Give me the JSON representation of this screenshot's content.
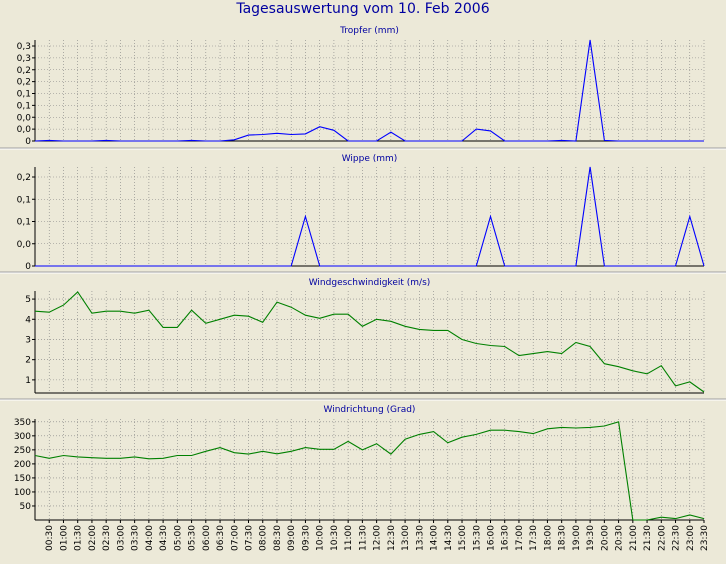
{
  "title": "Tagesauswertung vom 10. Feb 2006",
  "time_labels": [
    "00:30",
    "01:00",
    "01:30",
    "02:00",
    "02:30",
    "03:00",
    "03:30",
    "04:00",
    "04:30",
    "05:00",
    "05:30",
    "06:00",
    "06:30",
    "07:00",
    "07:30",
    "08:00",
    "08:30",
    "09:00",
    "09:30",
    "10:00",
    "10:30",
    "11:00",
    "11:30",
    "12:00",
    "12:30",
    "13:00",
    "13:30",
    "14:00",
    "14:30",
    "15:00",
    "15:30",
    "16:00",
    "16:30",
    "17:00",
    "17:30",
    "18:00",
    "18:30",
    "19:00",
    "19:30",
    "20:00",
    "20:30",
    "21:00",
    "21:30",
    "22:00",
    "22:30",
    "23:00",
    "23:30"
  ],
  "colors": {
    "background": "#ece9d8",
    "title": "#0000a0",
    "grid": "#808080",
    "blue_series": "#0000ff",
    "green_series": "#008000"
  },
  "chart_data": [
    {
      "type": "line",
      "title": "Tropfer (mm)",
      "ytick_labels": [
        "0",
        "0,0",
        "0,0",
        "0,1",
        "0,1",
        "0,2",
        "0,2",
        "0,3",
        "0,3"
      ],
      "ylim": [
        0,
        0.34
      ],
      "grid": true,
      "color": "#0000ff",
      "x": [
        0.0,
        0.5,
        1.0,
        1.5,
        2.0,
        2.5,
        3.0,
        3.5,
        4.0,
        4.5,
        5.0,
        5.5,
        6.0,
        6.5,
        7.0,
        7.5,
        8.0,
        8.5,
        9.0,
        9.5,
        10.0,
        10.5,
        11.0,
        11.5,
        12.0,
        12.5,
        13.0,
        13.5,
        14.0,
        14.5,
        15.0,
        15.5,
        16.0,
        16.5,
        17.0,
        17.5,
        18.0,
        18.5,
        19.0,
        19.5,
        20.0,
        20.5,
        21.0,
        21.5,
        22.0,
        22.5,
        23.0,
        23.5
      ],
      "values": [
        0,
        0.002,
        0,
        0,
        0,
        0.002,
        0,
        0,
        0,
        0,
        0,
        0.002,
        0,
        0,
        0.004,
        0.02,
        0.022,
        0.026,
        0.022,
        0.024,
        0.048,
        0.036,
        0,
        0,
        0,
        0.03,
        0,
        0,
        0,
        0,
        0,
        0.04,
        0.034,
        0,
        0,
        0,
        0,
        0.002,
        0,
        0.34,
        0.002,
        0,
        0,
        0,
        0,
        0,
        0,
        0
      ]
    },
    {
      "type": "line",
      "title": "Wippe (mm)",
      "ytick_labels": [
        "0",
        "0,0",
        "0,1",
        "0,1",
        "0,2"
      ],
      "ylim": [
        0,
        0.27
      ],
      "grid": true,
      "color": "#0000ff",
      "x": [
        0.0,
        0.5,
        1.0,
        1.5,
        2.0,
        2.5,
        3.0,
        3.5,
        4.0,
        4.5,
        5.0,
        5.5,
        6.0,
        6.5,
        7.0,
        7.5,
        8.0,
        8.5,
        9.0,
        9.5,
        10.0,
        10.5,
        11.0,
        11.5,
        12.0,
        12.5,
        13.0,
        13.5,
        14.0,
        14.5,
        15.0,
        15.5,
        16.0,
        16.5,
        17.0,
        17.5,
        18.0,
        18.5,
        19.0,
        19.5,
        20.0,
        20.5,
        21.0,
        21.5,
        22.0,
        22.5,
        23.0,
        23.5
      ],
      "values": [
        0,
        0,
        0,
        0,
        0,
        0,
        0,
        0,
        0,
        0,
        0,
        0,
        0,
        0,
        0,
        0,
        0,
        0,
        0,
        0.135,
        0,
        0,
        0,
        0,
        0,
        0,
        0,
        0,
        0,
        0,
        0,
        0,
        0.135,
        0,
        0,
        0,
        0,
        0,
        0,
        0.27,
        0,
        0,
        0,
        0,
        0,
        0,
        0.135,
        0
      ]
    },
    {
      "type": "line",
      "title": "Windgeschwindigkeit (m/s)",
      "ytick_labels": [
        "1",
        "2",
        "3",
        "4",
        "5"
      ],
      "ylim": [
        0.35,
        5.4
      ],
      "grid": true,
      "color": "#008000",
      "x": [
        0.0,
        0.5,
        1.0,
        1.5,
        2.0,
        2.5,
        3.0,
        3.5,
        4.0,
        4.5,
        5.0,
        5.5,
        6.0,
        6.5,
        7.0,
        7.5,
        8.0,
        8.5,
        9.0,
        9.5,
        10.0,
        10.5,
        11.0,
        11.5,
        12.0,
        12.5,
        13.0,
        13.5,
        14.0,
        14.5,
        15.0,
        15.5,
        16.0,
        16.5,
        17.0,
        17.5,
        18.0,
        18.5,
        19.0,
        19.5,
        20.0,
        20.5,
        21.0,
        21.5,
        22.0,
        22.5,
        23.0,
        23.5
      ],
      "values": [
        4.4,
        4.35,
        4.7,
        5.35,
        4.3,
        4.4,
        4.4,
        4.3,
        4.45,
        3.6,
        3.6,
        4.45,
        3.8,
        4.0,
        4.2,
        4.15,
        3.85,
        4.85,
        4.6,
        4.2,
        4.05,
        4.25,
        4.25,
        3.65,
        4.0,
        3.9,
        3.65,
        3.5,
        3.45,
        3.45,
        3.0,
        2.8,
        2.7,
        2.65,
        2.2,
        2.3,
        2.4,
        2.3,
        2.85,
        2.65,
        1.8,
        1.65,
        1.45,
        1.3,
        1.7,
        0.7,
        0.9,
        0.4
      ]
    },
    {
      "type": "line",
      "title": "Windrichtung (Grad)",
      "ytick_labels": [
        "50",
        "100",
        "150",
        "200",
        "250",
        "300",
        "350"
      ],
      "ylim": [
        0,
        360
      ],
      "grid": true,
      "color": "#008000",
      "x": [
        0.0,
        0.5,
        1.0,
        1.5,
        2.0,
        2.5,
        3.0,
        3.5,
        4.0,
        4.5,
        5.0,
        5.5,
        6.0,
        6.5,
        7.0,
        7.5,
        8.0,
        8.5,
        9.0,
        9.5,
        10.0,
        10.5,
        11.0,
        11.5,
        12.0,
        12.5,
        13.0,
        13.5,
        14.0,
        14.5,
        15.0,
        15.5,
        16.0,
        16.5,
        17.0,
        17.5,
        18.0,
        18.5,
        19.0,
        19.5,
        20.0,
        20.5,
        21.0,
        21.5,
        22.0,
        22.5,
        23.0,
        23.5
      ],
      "values": [
        230,
        220,
        230,
        225,
        222,
        220,
        220,
        225,
        218,
        220,
        230,
        230,
        245,
        258,
        240,
        235,
        245,
        236,
        245,
        258,
        252,
        252,
        280,
        250,
        272,
        235,
        288,
        305,
        315,
        275,
        295,
        305,
        320,
        320,
        315,
        308,
        325,
        330,
        328,
        330,
        335,
        350,
        0,
        0,
        10,
        5,
        18,
        5
      ]
    }
  ]
}
